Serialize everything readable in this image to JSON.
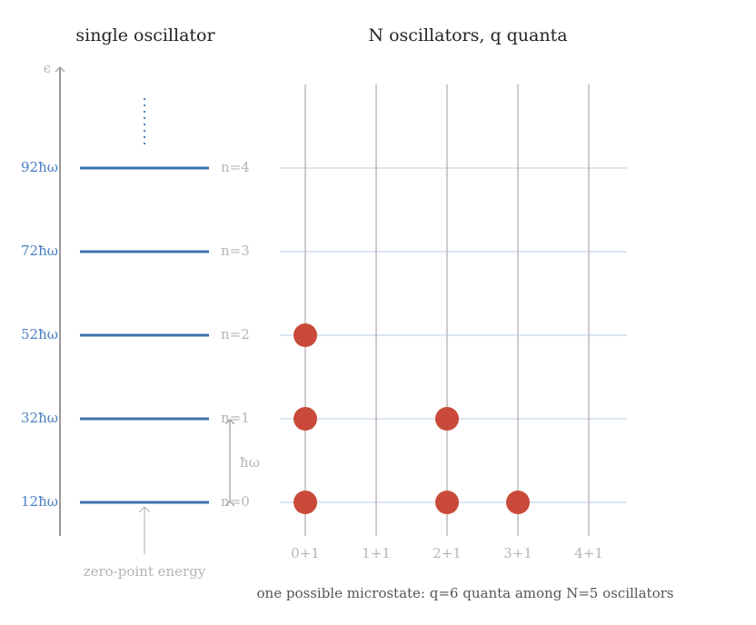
{
  "single_oscillator": {
    "title": "single oscillator",
    "axis_label": "ϵ",
    "energy_labels": [
      "12ħω",
      "32ħω",
      "52ħω",
      "72ħω",
      "92ħω"
    ],
    "level_labels": [
      "n=0",
      "n=1",
      "n=2",
      "n=3",
      "n=4"
    ],
    "spacing_label": "ħω",
    "zero_point_label": "zero-point energy"
  },
  "system": {
    "title": "N oscillators, q quanta",
    "oscillator_labels": [
      "0+1",
      "1+1",
      "2+1",
      "3+1",
      "4+1"
    ],
    "occupation": [
      2,
      null,
      1,
      0,
      null
    ],
    "caption": "one possible microstate: q=6 quanta among N=5 oscillators"
  }
}
